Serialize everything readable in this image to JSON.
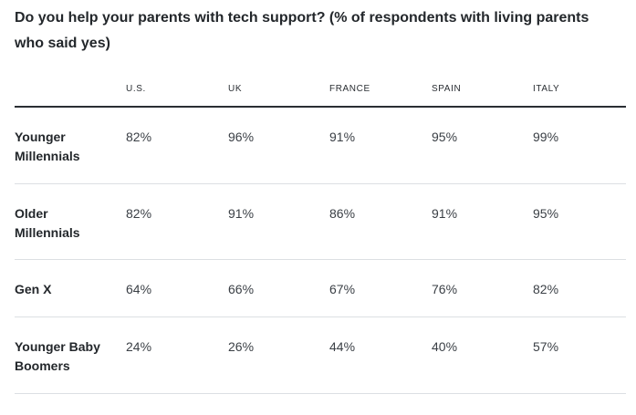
{
  "chart_data": {
    "type": "table",
    "title": "Do you help your parents with tech support? (% of respondents with living parents who said yes)",
    "columns": [
      "U.S.",
      "UK",
      "FRANCE",
      "SPAIN",
      "ITALY"
    ],
    "rows": [
      {
        "label": "Younger Millennials",
        "values": [
          "82%",
          "96%",
          "91%",
          "95%",
          "99%"
        ]
      },
      {
        "label": "Older Millennials",
        "values": [
          "82%",
          "91%",
          "86%",
          "91%",
          "95%"
        ]
      },
      {
        "label": "Gen X",
        "values": [
          "64%",
          "66%",
          "67%",
          "76%",
          "82%"
        ]
      },
      {
        "label": "Younger Baby Boomers",
        "values": [
          "24%",
          "26%",
          "44%",
          "40%",
          "57%"
        ]
      }
    ]
  }
}
